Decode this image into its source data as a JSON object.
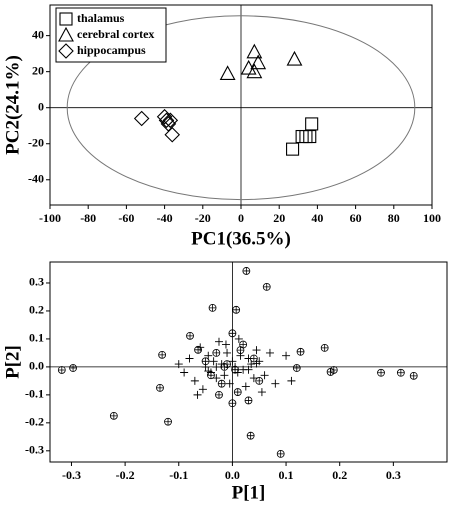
{
  "chart_data": [
    {
      "type": "scatter",
      "xlabel": "PC1(36.5%)",
      "ylabel": "PC2(24.1%)",
      "xlim": [
        -100,
        100
      ],
      "ylim": [
        -54,
        57
      ],
      "xticks": [
        -100,
        -80,
        -60,
        -40,
        -20,
        0,
        20,
        40,
        60,
        80,
        100
      ],
      "yticks": [
        -40,
        -20,
        0,
        20,
        40
      ],
      "ellipse": {
        "cx": 0,
        "cy": 0,
        "rx": 91,
        "ry": 51
      },
      "legend": "upper left",
      "series": [
        {
          "name": "thalamus",
          "marker": "square",
          "x": [
            37,
            34,
            36,
            32,
            27
          ],
          "y": [
            -9,
            -16,
            -16,
            -16,
            -23
          ]
        },
        {
          "name": "cerebral cortex",
          "marker": "triangle",
          "x": [
            7,
            4,
            7,
            9,
            -7,
            28
          ],
          "y": [
            31,
            22,
            20,
            25,
            19,
            27
          ]
        },
        {
          "name": "hippocampus",
          "marker": "diamond",
          "x": [
            -52,
            -40,
            -37,
            -38,
            -36,
            -39
          ],
          "y": [
            -6,
            -5,
            -7,
            -9,
            -15,
            -7
          ]
        }
      ]
    },
    {
      "type": "scatter",
      "xlabel": "P[1]",
      "ylabel": "P[2]",
      "xlim": [
        -0.34,
        0.4
      ],
      "ylim": [
        -0.34,
        0.375
      ],
      "xticks": [
        -0.3,
        -0.2,
        -0.1,
        {
          "value": 0,
          "label": "0.0"
        },
        0.1,
        0.2,
        0.3
      ],
      "yticks": [
        -0.3,
        -0.2,
        -0.1,
        {
          "value": 0,
          "label": "0.0"
        },
        0.1,
        0.2,
        0.3
      ],
      "series": [
        {
          "marker": "circle-plus",
          "x": [
            -0.318,
            -0.297,
            -0.131,
            -0.135,
            -0.12,
            -0.221,
            -0.079,
            -0.064,
            -0.037,
            0.007,
            0.026,
            0.064,
            0.127,
            0.12,
            0.172,
            0.183,
            0.189,
            0.277,
            0.314,
            0.338,
            0.034,
            0.09,
            -0.05,
            -0.04,
            -0.03,
            -0.02,
            -0.01,
            0.0,
            0.01,
            0.02,
            0.03,
            0.04,
            0.05,
            -0.015,
            0.005,
            -0.025,
            0.015,
            0.0
          ],
          "y": [
            -0.011,
            -0.004,
            0.043,
            -0.075,
            -0.196,
            -0.175,
            0.111,
            0.061,
            0.211,
            0.204,
            0.343,
            0.286,
            0.054,
            -0.004,
            0.068,
            -0.018,
            -0.011,
            -0.021,
            -0.021,
            -0.032,
            -0.246,
            -0.311,
            0.02,
            -0.03,
            0.05,
            -0.06,
            0.01,
            0.12,
            -0.09,
            0.08,
            -0.12,
            0.03,
            -0.05,
            0.0,
            -0.01,
            -0.1,
            0.06,
            -0.13
          ]
        },
        {
          "marker": "plus",
          "x": [
            -0.09,
            -0.08,
            -0.07,
            -0.06,
            -0.055,
            -0.05,
            -0.045,
            -0.04,
            -0.035,
            -0.03,
            -0.025,
            -0.02,
            -0.015,
            -0.01,
            -0.005,
            0.0,
            0.005,
            0.01,
            0.015,
            0.02,
            0.025,
            0.03,
            0.035,
            0.04,
            0.045,
            0.05,
            0.06,
            0.07,
            0.08,
            0.1,
            -0.1,
            0.11,
            -0.065,
            0.055,
            -0.012,
            0.012,
            -0.03,
            0.03,
            -0.045,
            0.045
          ],
          "y": [
            -0.02,
            0.03,
            -0.05,
            0.07,
            -0.08,
            0.0,
            0.04,
            -0.02,
            0.02,
            -0.04,
            0.09,
            0.01,
            -0.03,
            0.05,
            -0.06,
            0.02,
            0.0,
            -0.02,
            0.04,
            -0.01,
            -0.07,
            0.03,
            0.01,
            -0.04,
            0.06,
            0.02,
            -0.03,
            0.05,
            -0.06,
            0.04,
            0.01,
            -0.05,
            -0.1,
            -0.09,
            0.08,
            0.1,
            0.0,
            -0.01,
            -0.015,
            0.012
          ]
        }
      ]
    }
  ]
}
